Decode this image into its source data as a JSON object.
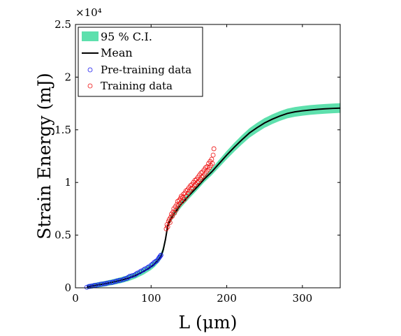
{
  "chart_data": {
    "type": "line",
    "xlabel": "L (μm)",
    "ylabel": "Strain Energy (mJ)",
    "y_multiplier_label": "×10⁴",
    "xlim": [
      0,
      350
    ],
    "ylim": [
      0,
      25000
    ],
    "x_ticks": [
      0,
      100,
      200,
      300
    ],
    "x_tick_labels": [
      "0",
      "100",
      "200",
      "300"
    ],
    "y_ticks": [
      0,
      5000,
      10000,
      15000,
      20000,
      25000
    ],
    "y_tick_labels": [
      "0",
      "0.5",
      "1",
      "1.5",
      "2",
      "2.5"
    ],
    "grid": false,
    "legend_position": "top-left",
    "legend": [
      {
        "label": "95 % C.I.",
        "kind": "band"
      },
      {
        "label": "Mean",
        "kind": "line"
      },
      {
        "label": "Pre-training data",
        "kind": "marker-blue"
      },
      {
        "label": "Training data",
        "kind": "marker-red"
      }
    ],
    "colors": {
      "ci_band": "#5ee0ad",
      "mean": "#000000",
      "pretraining": "#1a1aee",
      "training": "#ee1111"
    },
    "series": [
      {
        "name": "Mean",
        "x": [
          15,
          20,
          30,
          40,
          50,
          60,
          70,
          80,
          90,
          100,
          105,
          110,
          113,
          116,
          119,
          122,
          125,
          130,
          140,
          150,
          160,
          170,
          180,
          190,
          200,
          210,
          220,
          230,
          240,
          250,
          260,
          270,
          280,
          290,
          300,
          310,
          320,
          330,
          340,
          350
        ],
        "y": [
          100,
          150,
          280,
          400,
          550,
          720,
          920,
          1200,
          1550,
          2000,
          2300,
          2700,
          3000,
          3600,
          4600,
          5900,
          6400,
          7000,
          7950,
          8750,
          9500,
          10300,
          11000,
          11800,
          12600,
          13350,
          14050,
          14700,
          15200,
          15650,
          16000,
          16300,
          16550,
          16700,
          16800,
          16880,
          16940,
          16990,
          17030,
          17060
        ]
      },
      {
        "name": "95 % C.I.",
        "x": [
          15,
          20,
          30,
          40,
          50,
          60,
          70,
          80,
          90,
          100,
          105,
          110,
          113,
          116,
          119,
          122,
          125,
          130,
          140,
          150,
          160,
          170,
          180,
          190,
          200,
          210,
          220,
          230,
          240,
          250,
          260,
          270,
          280,
          290,
          300,
          310,
          320,
          330,
          340,
          350
        ],
        "half_width": [
          200,
          230,
          250,
          260,
          270,
          280,
          290,
          300,
          300,
          300,
          300,
          300,
          300,
          300,
          300,
          300,
          300,
          300,
          300,
          300,
          300,
          300,
          320,
          360,
          400,
          420,
          440,
          450,
          460,
          460,
          460,
          460,
          460,
          460,
          460,
          460,
          460,
          460,
          460,
          460
        ]
      },
      {
        "name": "Pre-training data",
        "x": [
          15,
          18,
          20,
          22,
          25,
          27,
          30,
          33,
          35,
          38,
          40,
          42,
          45,
          48,
          50,
          53,
          55,
          58,
          60,
          63,
          65,
          68,
          70,
          72,
          75,
          78,
          80,
          82,
          85,
          87,
          90,
          92,
          95,
          97,
          100,
          102,
          104,
          106,
          108,
          110,
          111,
          112,
          113
        ],
        "y": [
          50,
          130,
          150,
          170,
          230,
          240,
          280,
          330,
          350,
          380,
          400,
          450,
          490,
          510,
          550,
          600,
          650,
          700,
          720,
          780,
          840,
          900,
          1000,
          1100,
          1150,
          1200,
          1300,
          1400,
          1500,
          1600,
          1700,
          1800,
          1900,
          2000,
          2150,
          2250,
          2400,
          2500,
          2600,
          2800,
          2900,
          3000,
          3100
        ]
      },
      {
        "name": "Training data",
        "x": [
          120,
          121,
          122,
          123,
          124,
          125,
          126,
          127,
          128,
          129,
          130,
          131,
          132,
          133,
          134,
          135,
          136,
          137,
          138,
          139,
          140,
          141,
          142,
          143,
          144,
          145,
          146,
          147,
          148,
          149,
          150,
          151,
          152,
          153,
          154,
          155,
          156,
          157,
          158,
          159,
          160,
          161,
          162,
          163,
          164,
          165,
          166,
          167,
          168,
          169,
          170,
          171,
          172,
          173,
          174,
          175,
          176,
          177,
          178,
          179,
          180,
          181,
          182,
          183
        ],
        "y": [
          5600,
          6000,
          5800,
          6300,
          6500,
          6200,
          6700,
          7000,
          6800,
          7200,
          7500,
          7100,
          7700,
          7400,
          7900,
          8200,
          7800,
          8300,
          8000,
          8500,
          8700,
          8200,
          8600,
          8900,
          8400,
          9000,
          9200,
          8700,
          9300,
          9000,
          9500,
          9200,
          9700,
          9400,
          9800,
          9500,
          10000,
          9700,
          10200,
          9800,
          10300,
          10000,
          10500,
          10100,
          10700,
          10300,
          10900,
          10500,
          11000,
          10600,
          11200,
          10800,
          11400,
          11000,
          11500,
          11200,
          11800,
          11400,
          12000,
          11600,
          12200,
          11800,
          12600,
          13200
        ]
      }
    ]
  }
}
